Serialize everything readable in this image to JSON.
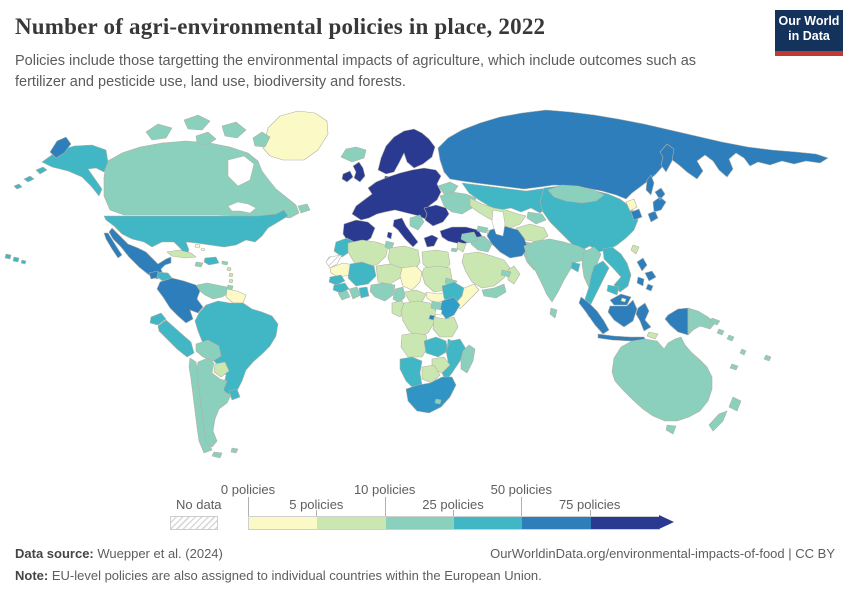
{
  "header": {
    "title": "Number of agri-environmental policies in place, 2022",
    "subtitle": "Policies include those targetting the environmental impacts of agriculture, which include outcomes such as fertilizer and pesticide use, land use, biodiversity and forests.",
    "logo": {
      "line1": "Our World",
      "line2": "in Data",
      "bg": "#14335c",
      "accent": "#bf3b31"
    }
  },
  "legend": {
    "no_data_label": "No data",
    "bins": [
      {
        "label": "0 policies",
        "color": "#fbfac6",
        "row": "top"
      },
      {
        "label": "5 policies",
        "color": "#cbe7b1",
        "row": "bottom"
      },
      {
        "label": "10 policies",
        "color": "#8bd0bc",
        "row": "top"
      },
      {
        "label": "25 policies",
        "color": "#41b6c4",
        "row": "bottom"
      },
      {
        "label": "50 policies",
        "color": "#2e7ebc",
        "row": "top"
      },
      {
        "label": "75 policies",
        "color": "#2b3a91",
        "row": "bottom"
      }
    ]
  },
  "footer": {
    "source_label": "Data source:",
    "source_text": " Wuepper et al. (2024)",
    "url_text": "OurWorldinData.org/environmental-impacts-of-food",
    "separator": " | ",
    "license": "CC BY",
    "note_label": "Note:",
    "note_text": " EU-level policies are also assigned to individual countries within the European Union."
  },
  "map": {
    "sea": "#ffffff",
    "border_color": "#b3b0a5",
    "regions": {
      "greenland": "#fbfac6",
      "iceland": "#8bd0bc",
      "canada": "#8bd0bc",
      "canada-arctic": "#8bd0bc",
      "newfoundland": "#8bd0bc",
      "alaska": "#41b6c4",
      "aleutians": "#41b6c4",
      "chukotka": "#2e7ebc",
      "hawaii": "#41b6c4",
      "usa": "#41b6c4",
      "mexico": "#2e7ebc",
      "baja": "#2e7ebc",
      "guatemala": "#2e7ebc",
      "honduras": "#41b6c4",
      "nicaragua": "#41b6c4",
      "costa-rica": "#2e7ebc",
      "panama": "#2e7ebc",
      "cuba": "#cbe7b1",
      "jamaica": "#8bd0bc",
      "hispaniola": "#41b6c4",
      "puerto-rico": "#8bd0bc",
      "bahamas": "#fbfac6",
      "lesser-antilles": "#cbe7b1",
      "trinidad": "#8bd0bc",
      "colombia": "#2e7ebc",
      "venezuela": "#8bd0bc",
      "guyanas": "#fbfac6",
      "ecuador": "#41b6c4",
      "peru": "#41b6c4",
      "brazil": "#41b6c4",
      "bolivia": "#8bd0bc",
      "paraguay": "#cbe7b1",
      "uruguay": "#41b6c4",
      "chile": "#8bd0bc",
      "argentina": "#8bd0bc",
      "tierra-del-fuego": "#8bd0bc",
      "falklands": "#8bd0bc",
      "scandinavia": "#2b3a91",
      "denmark": "#2b3a91",
      "uk": "#2b3a91",
      "ireland": "#2b3a91",
      "eu-central": "#2b3a91",
      "iberia": "#2b3a91",
      "italy": "#2b3a91",
      "sicily": "#2b3a91",
      "sardinia": "#2b3a91",
      "romania-bulgaria": "#2b3a91",
      "greece": "#2b3a91",
      "west-balkans": "#8bd0bc",
      "ukraine": "#8bd0bc",
      "belarus": "#8bd0bc",
      "turkey": "#2b3a91",
      "cyprus": "#8bd0bc",
      "russia": "#2e7ebc",
      "kamchatka": "#2e7ebc",
      "sakhalin": "#2e7ebc",
      "kazakhstan": "#41b6c4",
      "uzbekistan-turkmenistan": "#cbe7b1",
      "kyrgyzstan": "#8bd0bc",
      "afghanistan": "#cbe7b1",
      "pakistan": "#8bd0bc",
      "georgia": "#8bd0bc",
      "azerbaijan": "#cbe7b1",
      "iran": "#2e7ebc",
      "iraq": "#8bd0bc",
      "syria": "#8bd0bc",
      "jordan": "#cbe7b1",
      "saudi-arabia": "#cbe7b1",
      "yemen": "#8bd0bc",
      "oman": "#cbe7b1",
      "uae": "#8bd0bc",
      "india": "#8bd0bc",
      "bangladesh": "#41b6c4",
      "sri-lanka": "#8bd0bc",
      "china": "#41b6c4",
      "mongolia": "#8bd0bc",
      "north-korea": "#fbfac6",
      "south-korea": "#2e7ebc",
      "japan": "#2e7ebc",
      "taiwan": "#cbe7b1",
      "myanmar": "#8bd0bc",
      "thailand": "#41b6c4",
      "laos-vietnam": "#41b6c4",
      "cambodia": "#41b6c4",
      "malaysia-peninsula": "#2e7ebc",
      "sumatra": "#2e7ebc",
      "java": "#2e7ebc",
      "borneo-malaysia": "#2e7ebc",
      "brunei": "#fbfac6",
      "borneo-indonesia": "#2e7ebc",
      "sulawesi": "#2e7ebc",
      "timor": "#cbe7b1",
      "west-papua": "#2e7ebc",
      "papua-new-guinea": "#8bd0bc",
      "new-britain": "#8bd0bc",
      "philippines": "#2e7ebc",
      "australia": "#8bd0bc",
      "tasmania": "#8bd0bc",
      "new-zealand-north": "#8bd0bc",
      "new-zealand-south": "#8bd0bc",
      "pacific-islands": "#8bd0bc",
      "morocco": "#41b6c4",
      "western-sahara": "hatch",
      "mauritania": "#fbfac6",
      "senegal": "#41b6c4",
      "guinea": "#41b6c4",
      "sierra-leone": "#8bd0bc",
      "ivory-coast": "#8bd0bc",
      "ghana": "#41b6c4",
      "nigeria": "#8bd0bc",
      "cameroon": "#8bd0bc",
      "algeria": "#cbe7b1",
      "tunisia": "#8bd0bc",
      "libya": "#cbe7b1",
      "egypt": "#cbe7b1",
      "mali": "#41b6c4",
      "niger": "#cbe7b1",
      "chad": "#fbfac6",
      "sudan": "#cbe7b1",
      "south-sudan": "#fbfac6",
      "eritrea": "#8bd0bc",
      "ethiopia": "#41b6c4",
      "somalia": "#fbfac6",
      "central-african-republic": "#cbe7b1",
      "gabon-congo": "#cbe7b1",
      "drc": "#cbe7b1",
      "uganda": "#8bd0bc",
      "kenya": "#2f9ec9",
      "rwanda": "#2e7ebc",
      "tanzania": "#cbe7b1",
      "angola": "#cbe7b1",
      "zambia": "#41b6c4",
      "malawi": "#41b6c4",
      "mozambique": "#41b6c4",
      "zimbabwe": "#cbe7b1",
      "botswana": "#cbe7b1",
      "namibia": "#41b6c4",
      "south-africa": "#3095c5",
      "lesotho": "#8bd0bc",
      "madagascar": "#8bd0bc"
    }
  }
}
